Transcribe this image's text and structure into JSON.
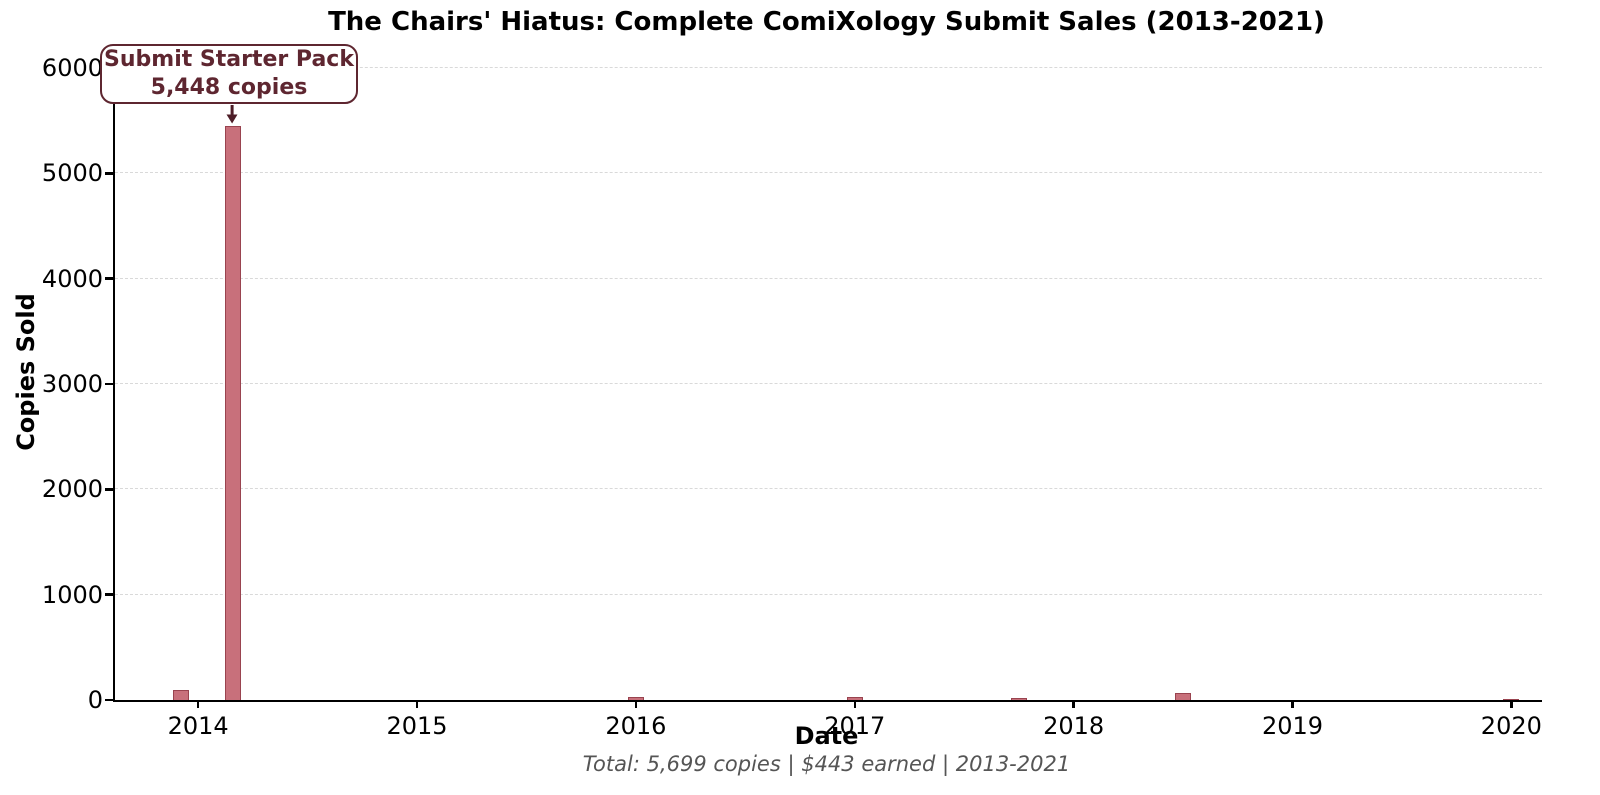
{
  "title": "The Chairs' Hiatus: Complete ComiXology Submit Sales (2013-2021)",
  "annotation": {
    "line1": "Submit Starter Pack",
    "line2": "5,448 copies"
  },
  "footer": "Total: 5,699 copies | $443 earned | 2013-2021",
  "colors": {
    "bar_fill": "#c8707b",
    "bar_edge": "#99434f",
    "annotation": "#5e2630",
    "arrow": "#4d1d27",
    "grid": "#d9d9d9",
    "footer_text": "#555555"
  },
  "chart_data": {
    "type": "bar",
    "title": "The Chairs' Hiatus: Complete ComiXology Submit Sales (2013-2021)",
    "xlabel": "Date",
    "ylabel": "Copies Sold",
    "caption": "Total: 5,699 copies | $443 earned | 2013-2021",
    "grid": "horizontal-dashed",
    "legend": "none",
    "x_ticks": [
      2014,
      2015,
      2016,
      2017,
      2018,
      2019,
      2020
    ],
    "y_ticks": [
      0,
      1000,
      2000,
      3000,
      4000,
      5000,
      6000
    ],
    "xlim": [
      2013.62,
      2020.14
    ],
    "ylim": [
      0,
      6218
    ],
    "bar_width_years": 0.073,
    "points": [
      {
        "x": 2013.92,
        "period": "Dec 2013",
        "value": 95
      },
      {
        "x": 2014.16,
        "period": "Feb 2014",
        "value": 5448,
        "annotated": true
      },
      {
        "x": 2016.0,
        "period": "Jan 2016",
        "value": 24
      },
      {
        "x": 2017.0,
        "period": "Jan 2017",
        "value": 33
      },
      {
        "x": 2017.75,
        "period": "Oct 2017",
        "value": 19
      },
      {
        "x": 2018.5,
        "period": "Jul 2018",
        "value": 71
      },
      {
        "x": 2020.0,
        "period": "Jan 2020",
        "value": 9
      }
    ],
    "annotation": {
      "text": "Submit Starter Pack\n5,448 copies",
      "points_to": {
        "x": 2014.16,
        "value": 5448
      }
    }
  }
}
